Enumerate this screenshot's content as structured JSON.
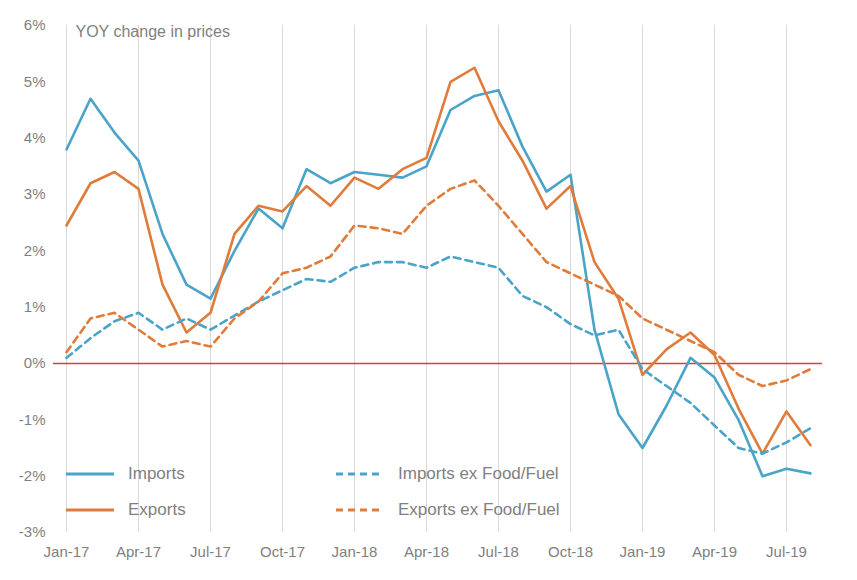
{
  "chart_data": {
    "type": "line",
    "ylabel": "YOY change in prices",
    "categories": [
      "Jan-17",
      null,
      null,
      "Apr-17",
      null,
      null,
      "Jul-17",
      null,
      null,
      "Oct-17",
      null,
      null,
      "Jan-18",
      null,
      null,
      "Apr-18",
      null,
      null,
      "Jul-18",
      null,
      null,
      "Oct-18",
      null,
      null,
      "Jan-19",
      null,
      null,
      "Apr-19",
      null,
      null,
      "Jul-19",
      null
    ],
    "series": [
      {
        "name": "Imports",
        "color": "#4aa3c8",
        "line_style": "solid",
        "values": [
          3.8,
          4.7,
          4.1,
          3.6,
          2.3,
          1.4,
          1.15,
          2.0,
          2.75,
          2.4,
          3.45,
          3.2,
          3.4,
          3.35,
          3.3,
          3.5,
          4.5,
          4.75,
          4.85,
          3.85,
          3.05,
          3.35,
          0.6,
          -0.9,
          -1.5,
          -0.75,
          0.1,
          -0.25,
          -1.0,
          -2.0,
          -1.87,
          -1.95
        ]
      },
      {
        "name": "Exports",
        "color": "#e07b3a",
        "line_style": "solid",
        "values": [
          2.45,
          3.2,
          3.4,
          3.1,
          1.4,
          0.55,
          0.9,
          2.3,
          2.8,
          2.7,
          3.15,
          2.8,
          3.3,
          3.1,
          3.45,
          3.65,
          5.0,
          5.25,
          4.3,
          3.6,
          2.75,
          3.15,
          1.8,
          1.15,
          -0.2,
          0.25,
          0.55,
          0.15,
          -0.8,
          -1.6,
          -0.85,
          -1.45
        ]
      },
      {
        "name": "Imports ex Food/Fuel",
        "color": "#4aa3c8",
        "line_style": "dashed",
        "values": [
          0.1,
          0.45,
          0.75,
          0.9,
          0.6,
          0.8,
          0.6,
          0.85,
          1.1,
          1.3,
          1.5,
          1.45,
          1.7,
          1.8,
          1.8,
          1.7,
          1.9,
          1.8,
          1.7,
          1.2,
          1.0,
          0.7,
          0.5,
          0.6,
          -0.1,
          -0.4,
          -0.7,
          -1.1,
          -1.5,
          -1.6,
          -1.4,
          -1.15
        ]
      },
      {
        "name": "Exports ex Food/Fuel",
        "color": "#e07b3a",
        "line_style": "dashed",
        "values": [
          0.2,
          0.8,
          0.9,
          0.6,
          0.3,
          0.4,
          0.3,
          0.8,
          1.1,
          1.6,
          1.7,
          1.9,
          2.45,
          2.4,
          2.3,
          2.8,
          3.1,
          3.25,
          2.8,
          2.3,
          1.8,
          1.6,
          1.4,
          1.2,
          0.8,
          0.6,
          0.4,
          0.2,
          -0.2,
          -0.4,
          -0.3,
          -0.1
        ]
      }
    ],
    "ylim": [
      -3,
      6
    ],
    "yticks": [
      {
        "value": -3,
        "label": "-3%"
      },
      {
        "value": -2,
        "label": "-2%"
      },
      {
        "value": -1,
        "label": "-1%"
      },
      {
        "value": 0,
        "label": "0%"
      },
      {
        "value": 1,
        "label": "1%"
      },
      {
        "value": 2,
        "label": "2%"
      },
      {
        "value": 3,
        "label": "3%"
      },
      {
        "value": 4,
        "label": "4%"
      },
      {
        "value": 5,
        "label": "5%"
      },
      {
        "value": 6,
        "label": "6%"
      }
    ],
    "reference_lines": [
      {
        "y": 0,
        "color": "#e8392f"
      }
    ],
    "grid": true,
    "legend": "lower left"
  }
}
